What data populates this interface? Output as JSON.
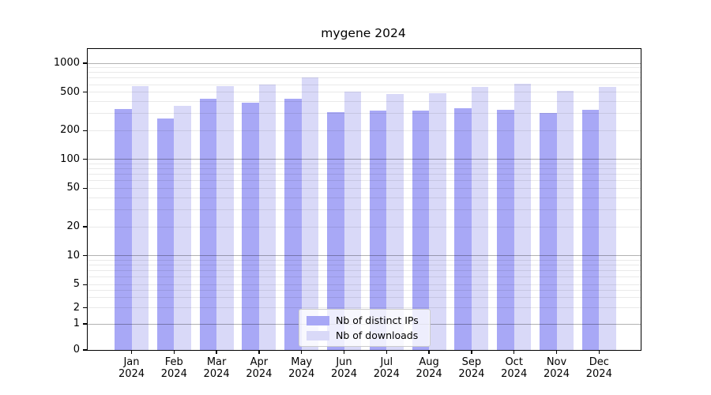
{
  "chart_data": {
    "type": "bar",
    "title": "mygene 2024",
    "categories": [
      "Jan 2024",
      "Feb 2024",
      "Mar 2024",
      "Apr 2024",
      "May 2024",
      "Jun 2024",
      "Jul 2024",
      "Aug 2024",
      "Sep 2024",
      "Oct 2024",
      "Nov 2024",
      "Dec 2024"
    ],
    "series": [
      {
        "name": "Nb of distinct IPs",
        "color": "#a8a8f6",
        "values": [
          332,
          266,
          427,
          388,
          430,
          312,
          320,
          322,
          342,
          330,
          306,
          329
        ]
      },
      {
        "name": "Nb of downloads",
        "color": "#d9d9f8",
        "values": [
          575,
          358,
          575,
          600,
          708,
          506,
          476,
          490,
          567,
          612,
          516,
          570
        ]
      }
    ],
    "yaxis": {
      "scale": "symlog",
      "tick_labels": [
        0,
        1,
        2,
        5,
        10,
        20,
        50,
        100,
        200,
        500,
        1000
      ],
      "minor_gridlines": [
        3,
        4,
        6,
        7,
        8,
        9,
        30,
        40,
        60,
        70,
        80,
        90,
        300,
        400,
        600,
        700,
        800,
        900
      ],
      "major_gridlines": [
        1,
        10,
        100,
        1000
      ],
      "ylim": [
        0,
        1400
      ],
      "grid": true
    },
    "xaxis": {
      "year_line": "2024"
    },
    "legend": {
      "position": "lower center"
    }
  }
}
